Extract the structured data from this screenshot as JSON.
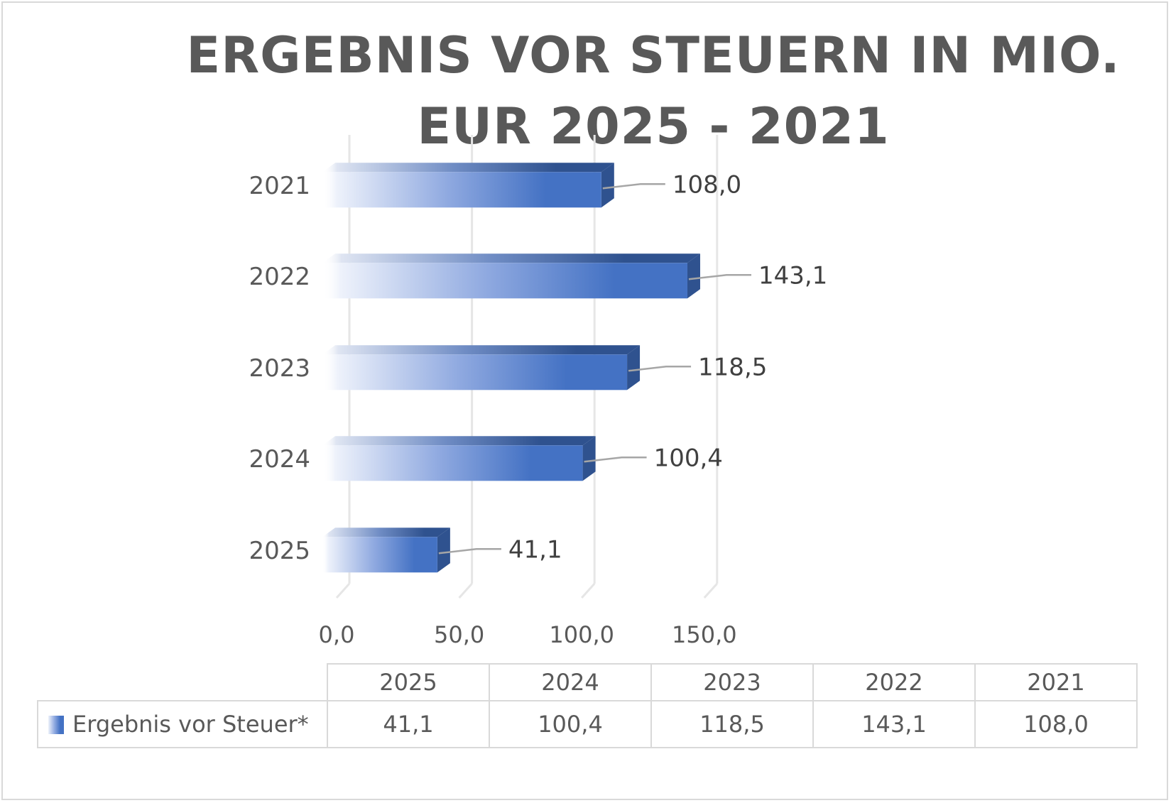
{
  "chart_data": {
    "type": "bar",
    "orientation": "horizontal",
    "title": "ERGEBNIS VOR STEUERN IN MIO. EUR 2025 - 2021",
    "categories": [
      "2021",
      "2022",
      "2023",
      "2024",
      "2025"
    ],
    "series": [
      {
        "name": "Ergebnis vor Steuer*",
        "values": [
          108.0,
          143.1,
          118.5,
          100.4,
          41.1
        ]
      }
    ],
    "data_labels": [
      "108,0",
      "143,1",
      "118,5",
      "100,4",
      "41,1"
    ],
    "x_ticks": [
      "0,0",
      "50,0",
      "100,0",
      "150,0"
    ],
    "xlim": [
      0,
      150
    ],
    "grid": true,
    "legend": "data-table",
    "bar_color": "#4472C4",
    "bar_side_color": "#2F528F",
    "data_table": {
      "headers": [
        "2025",
        "2024",
        "2023",
        "2022",
        "2021"
      ],
      "values": [
        "41,1",
        "100,4",
        "118,5",
        "143,1",
        "108,0"
      ]
    }
  },
  "colors": {
    "text": "#595959",
    "grid": "#e6e6e6",
    "border": "#d9d9d9"
  }
}
